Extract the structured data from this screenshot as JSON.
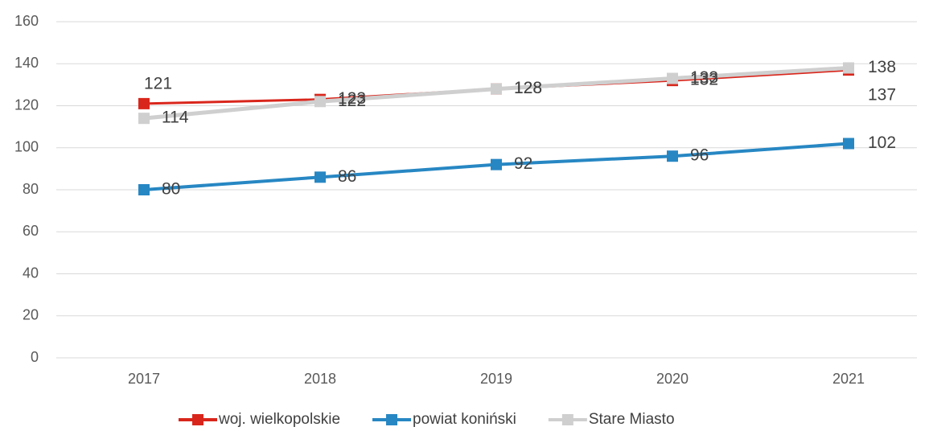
{
  "chart_data": {
    "type": "line",
    "categories": [
      "2017",
      "2018",
      "2019",
      "2020",
      "2021"
    ],
    "series": [
      {
        "name": "woj. wielkopolskie",
        "color": "#d9261c",
        "values": [
          121,
          123,
          128,
          132,
          137
        ]
      },
      {
        "name": "powiat koniński",
        "color": "#2787c3",
        "values": [
          80,
          86,
          92,
          96,
          102
        ]
      },
      {
        "name": "Stare Miasto",
        "color": "#cfcfcf",
        "values": [
          114,
          122,
          128,
          133,
          138
        ]
      }
    ],
    "ylim": [
      0,
      160
    ],
    "yticks": [
      0,
      20,
      40,
      60,
      80,
      100,
      120,
      140,
      160
    ],
    "grid": true,
    "legend": "bottom"
  }
}
